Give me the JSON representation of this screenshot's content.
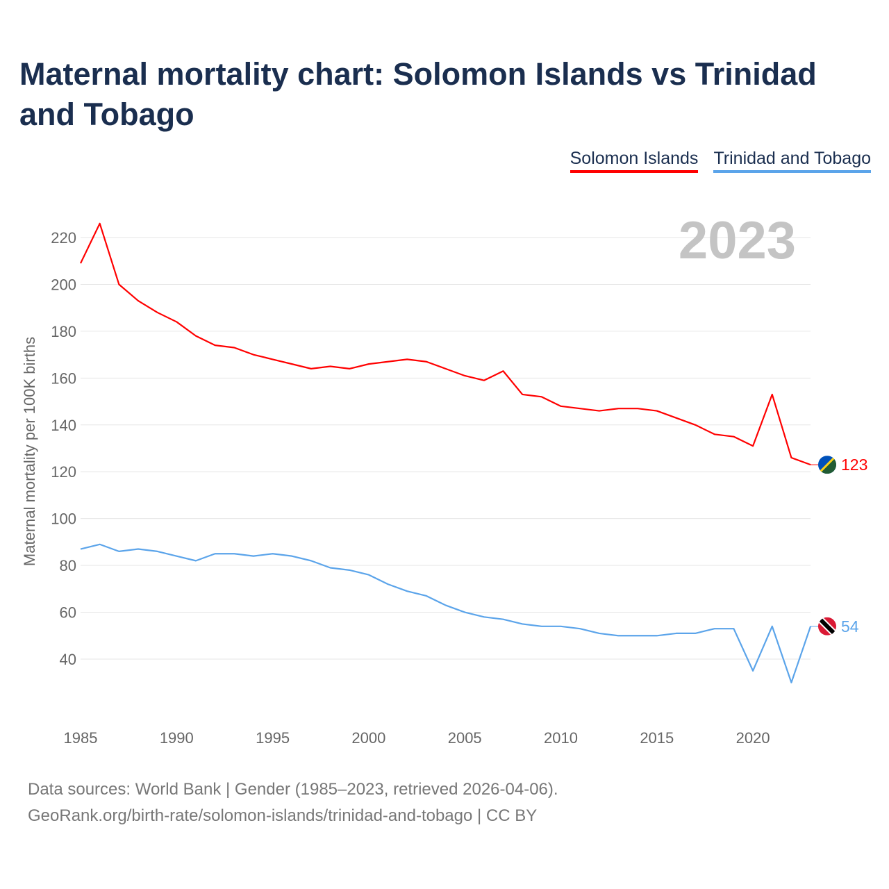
{
  "title": "Maternal mortality chart: Solomon Islands vs Trinidad and Tobago",
  "footer": {
    "line1": "Data sources: World Bank | Gender (1985–2023, retrieved 2026-04-06).",
    "line2": "GeoRank.org/birth-rate/solomon-islands/trinidad-and-tobago | CC BY"
  },
  "chart_data": {
    "type": "line",
    "title": "Maternal mortality chart: Solomon Islands vs Trinidad and Tobago",
    "ylabel": "Maternal mortality per 100K births",
    "xlabel": "",
    "year_label": "2023",
    "xlim": [
      1985,
      2023
    ],
    "ylim": [
      20,
      230
    ],
    "x_ticks": [
      "1985",
      "1990",
      "1995",
      "2000",
      "2005",
      "2010",
      "2015",
      "2020"
    ],
    "y_ticks": [
      "40",
      "60",
      "80",
      "100",
      "120",
      "140",
      "160",
      "180",
      "200",
      "220"
    ],
    "grid": true,
    "legend_position": "top-right",
    "x": [
      1985,
      1986,
      1987,
      1988,
      1989,
      1990,
      1991,
      1992,
      1993,
      1994,
      1995,
      1996,
      1997,
      1998,
      1999,
      2000,
      2001,
      2002,
      2003,
      2004,
      2005,
      2006,
      2007,
      2008,
      2009,
      2010,
      2011,
      2012,
      2013,
      2014,
      2015,
      2016,
      2017,
      2018,
      2019,
      2020,
      2021,
      2022,
      2023
    ],
    "series": [
      {
        "name": "Solomon Islands",
        "color": "#ff0000",
        "end_label": "123",
        "values": [
          209,
          226,
          200,
          193,
          188,
          184,
          178,
          174,
          173,
          170,
          168,
          166,
          164,
          165,
          164,
          166,
          167,
          168,
          167,
          164,
          161,
          159,
          163,
          153,
          152,
          148,
          147,
          146,
          147,
          147,
          146,
          143,
          140,
          136,
          135,
          131,
          153,
          126,
          123
        ]
      },
      {
        "name": "Trinidad and Tobago",
        "color": "#5ba4ea",
        "end_label": "54",
        "values": [
          87,
          89,
          86,
          87,
          86,
          84,
          82,
          85,
          85,
          84,
          85,
          84,
          82,
          79,
          78,
          76,
          72,
          69,
          67,
          63,
          60,
          58,
          57,
          55,
          54,
          54,
          53,
          51,
          50,
          50,
          50,
          51,
          51,
          53,
          53,
          35,
          54,
          30,
          54
        ]
      }
    ]
  }
}
